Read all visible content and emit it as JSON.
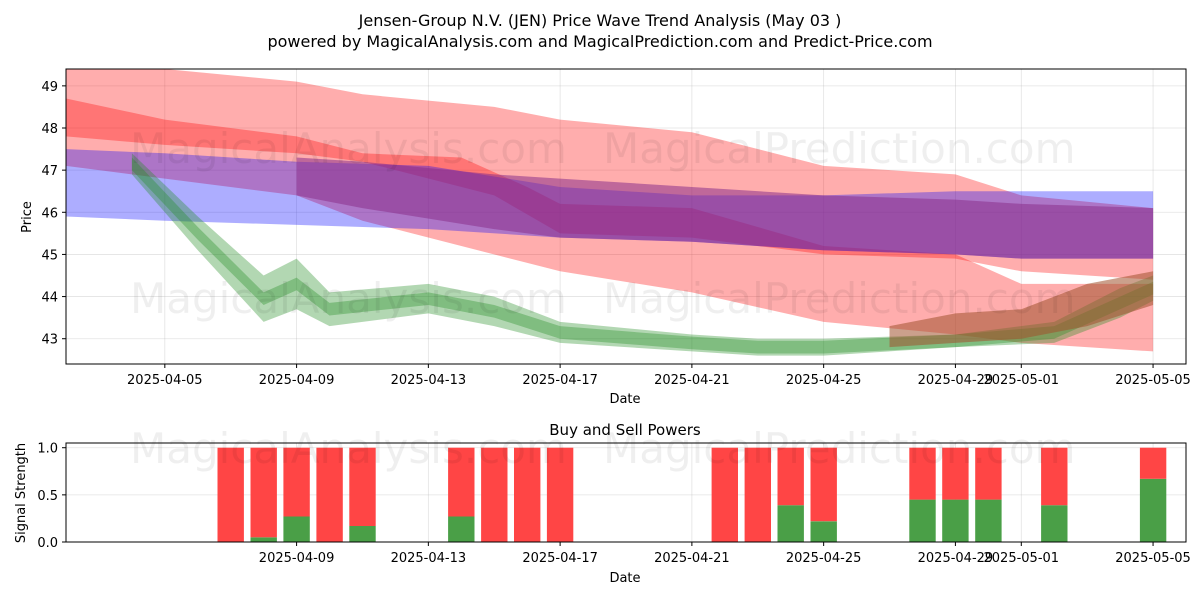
{
  "title": "Jensen-Group N.V. (JEN) Price Wave Trend Analysis (May 03 )",
  "subtitle": "powered by MagicalAnalysis.com and MagicalPrediction.com and Predict-Price.com",
  "watermarks": [
    "MagicalAnalysis.com",
    "MagicalPrediction.com"
  ],
  "colors": {
    "red": "#ff0000",
    "blue": "#0000ff",
    "green": "#228b22",
    "buy": "#4a9f47",
    "sell": "#ff4545",
    "orange": "#a0522d"
  },
  "chart_data": [
    {
      "type": "area",
      "title": "",
      "xlabel": "Date",
      "ylabel": "Price",
      "xlim": [
        "2025-04-02",
        "2025-05-06"
      ],
      "ylim": [
        42.4,
        49.4
      ],
      "x_ticks": [
        "2025-04-05",
        "2025-04-09",
        "2025-04-13",
        "2025-04-17",
        "2025-04-21",
        "2025-04-25",
        "2025-04-29",
        "2025-05-01",
        "2025-05-05"
      ],
      "y_ticks": [
        43,
        44,
        45,
        46,
        47,
        48,
        49
      ],
      "grid": true,
      "bands": [
        {
          "name": "red-upper",
          "color": "red",
          "x": [
            "2025-04-02",
            "2025-04-05",
            "2025-04-09",
            "2025-04-11",
            "2025-04-15",
            "2025-04-17",
            "2025-04-21",
            "2025-04-25",
            "2025-04-29",
            "2025-05-01",
            "2025-05-05"
          ],
          "upper": [
            49.5,
            49.4,
            49.1,
            48.8,
            48.5,
            48.2,
            47.9,
            47.1,
            46.9,
            46.4,
            46.1
          ],
          "lower": [
            47.8,
            47.6,
            47.4,
            47.2,
            46.4,
            45.5,
            45.4,
            45.0,
            44.9,
            44.6,
            44.4
          ]
        },
        {
          "name": "red-lower",
          "color": "red",
          "x": [
            "2025-04-02",
            "2025-04-05",
            "2025-04-09",
            "2025-04-11",
            "2025-04-14",
            "2025-04-16",
            "2025-04-17",
            "2025-04-21",
            "2025-04-25",
            "2025-04-29",
            "2025-05-01",
            "2025-05-05"
          ],
          "upper": [
            48.7,
            48.2,
            47.8,
            47.4,
            47.3,
            46.6,
            46.2,
            46.1,
            45.2,
            45.0,
            44.3,
            44.3
          ],
          "lower": [
            47.1,
            46.8,
            46.4,
            45.8,
            45.2,
            44.8,
            44.6,
            44.1,
            43.4,
            43.1,
            42.9,
            42.7
          ]
        },
        {
          "name": "blue",
          "color": "blue",
          "x": [
            "2025-04-02",
            "2025-04-05",
            "2025-04-09",
            "2025-04-13",
            "2025-04-17",
            "2025-04-21",
            "2025-04-25",
            "2025-04-29",
            "2025-05-01",
            "2025-05-05"
          ],
          "upper": [
            47.5,
            47.4,
            47.2,
            47.1,
            46.6,
            46.4,
            46.4,
            46.5,
            46.5,
            46.5
          ],
          "lower": [
            45.9,
            45.8,
            45.7,
            45.6,
            45.4,
            45.3,
            45.1,
            45.0,
            44.9,
            44.9
          ]
        },
        {
          "name": "purple-overlap",
          "color": "purple",
          "x": [
            "2025-04-09",
            "2025-04-11",
            "2025-04-15",
            "2025-04-17",
            "2025-04-21",
            "2025-04-25",
            "2025-04-29",
            "2025-05-01",
            "2025-05-05"
          ],
          "upper": [
            47.3,
            47.2,
            46.9,
            46.8,
            46.6,
            46.4,
            46.3,
            46.2,
            46.1
          ],
          "lower": [
            46.4,
            46.1,
            45.6,
            45.4,
            45.3,
            45.1,
            45.0,
            44.9,
            44.9
          ]
        },
        {
          "name": "green",
          "color": "green",
          "x": [
            "2025-04-04",
            "2025-04-06",
            "2025-04-08",
            "2025-04-09",
            "2025-04-10",
            "2025-04-13",
            "2025-04-15",
            "2025-04-17",
            "2025-04-21",
            "2025-04-23",
            "2025-04-25",
            "2025-04-29",
            "2025-05-02",
            "2025-05-04",
            "2025-05-05"
          ],
          "upper": [
            47.4,
            45.9,
            44.5,
            44.9,
            44.1,
            44.3,
            44.0,
            43.4,
            43.1,
            43.0,
            43.0,
            43.1,
            43.4,
            44.2,
            44.5
          ],
          "lower": [
            46.9,
            45.1,
            43.4,
            43.7,
            43.3,
            43.6,
            43.3,
            42.9,
            42.7,
            42.6,
            42.6,
            42.8,
            42.9,
            43.5,
            43.9
          ]
        },
        {
          "name": "orange-overlap",
          "color": "orange",
          "x": [
            "2025-04-27",
            "2025-04-29",
            "2025-05-01",
            "2025-05-03",
            "2025-05-05"
          ],
          "upper": [
            43.3,
            43.6,
            43.7,
            44.3,
            44.6
          ],
          "lower": [
            42.8,
            42.9,
            43.0,
            43.3,
            43.8
          ]
        }
      ]
    },
    {
      "type": "bar",
      "title": "Buy and Sell Powers",
      "xlabel": "Date",
      "ylabel": "Signal Strength",
      "ylim": [
        0,
        1.05
      ],
      "x_ticks": [
        "2025-04-09",
        "2025-04-13",
        "2025-04-17",
        "2025-04-21",
        "2025-04-25",
        "2025-04-29",
        "2025-05-01",
        "2025-05-05"
      ],
      "y_ticks": [
        "0.0",
        "0.5",
        "1.0"
      ],
      "grid": true,
      "series": [
        {
          "name": "Buy",
          "color": "buy",
          "x": [
            "2025-04-07",
            "2025-04-08",
            "2025-04-09",
            "2025-04-10",
            "2025-04-11",
            "2025-04-14",
            "2025-04-15",
            "2025-04-16",
            "2025-04-17",
            "2025-04-22",
            "2025-04-23",
            "2025-04-24",
            "2025-04-25",
            "2025-04-28",
            "2025-04-29",
            "2025-04-30",
            "2025-05-02",
            "2025-05-05"
          ],
          "values": [
            0.0,
            0.05,
            0.27,
            0.0,
            0.17,
            0.27,
            0.0,
            0.0,
            0.0,
            0.0,
            0.0,
            0.39,
            0.22,
            0.45,
            0.45,
            0.45,
            0.39,
            0.67
          ]
        },
        {
          "name": "Sell",
          "color": "sell",
          "x": [
            "2025-04-07",
            "2025-04-08",
            "2025-04-09",
            "2025-04-10",
            "2025-04-11",
            "2025-04-14",
            "2025-04-15",
            "2025-04-16",
            "2025-04-17",
            "2025-04-22",
            "2025-04-23",
            "2025-04-24",
            "2025-04-25",
            "2025-04-28",
            "2025-04-29",
            "2025-04-30",
            "2025-05-02",
            "2025-05-05"
          ],
          "values": [
            1.0,
            0.95,
            0.73,
            1.0,
            0.83,
            0.73,
            1.0,
            1.0,
            1.0,
            1.0,
            1.0,
            0.61,
            0.78,
            0.55,
            0.55,
            0.55,
            0.61,
            0.33
          ]
        }
      ]
    }
  ]
}
